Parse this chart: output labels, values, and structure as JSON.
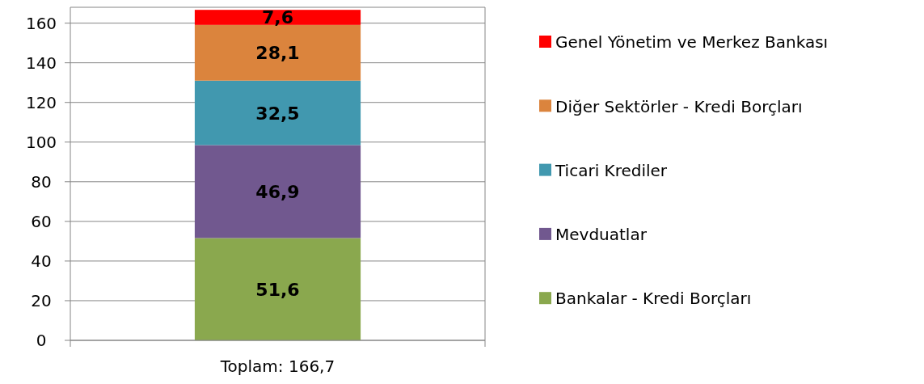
{
  "chart_data": {
    "type": "bar",
    "stacked": true,
    "categories": [
      "Toplam: 166,7"
    ],
    "series": [
      {
        "name": "Bankalar - Kredi Borçları",
        "color": "#8aa84e",
        "values": [
          51.6
        ],
        "value_labels": [
          "51,6"
        ]
      },
      {
        "name": "Mevduatlar",
        "color": "#71588f",
        "values": [
          46.9
        ],
        "value_labels": [
          "46,9"
        ]
      },
      {
        "name": "Ticari Krediler",
        "color": "#4198af",
        "values": [
          32.5
        ],
        "value_labels": [
          "32,5"
        ]
      },
      {
        "name": "Diğer Sektörler - Kredi Borçları",
        "color": "#db843d",
        "values": [
          28.1
        ],
        "value_labels": [
          "28,1"
        ]
      },
      {
        "name": "Genel Yönetim ve Merkez Bankası",
        "color": "#ff0000",
        "values": [
          7.6
        ],
        "value_labels": [
          "7,6"
        ]
      }
    ],
    "ylim": [
      0,
      168
    ],
    "yticks": [
      0,
      20,
      40,
      60,
      80,
      100,
      120,
      140,
      160
    ],
    "grid": "y",
    "legend": "right"
  }
}
